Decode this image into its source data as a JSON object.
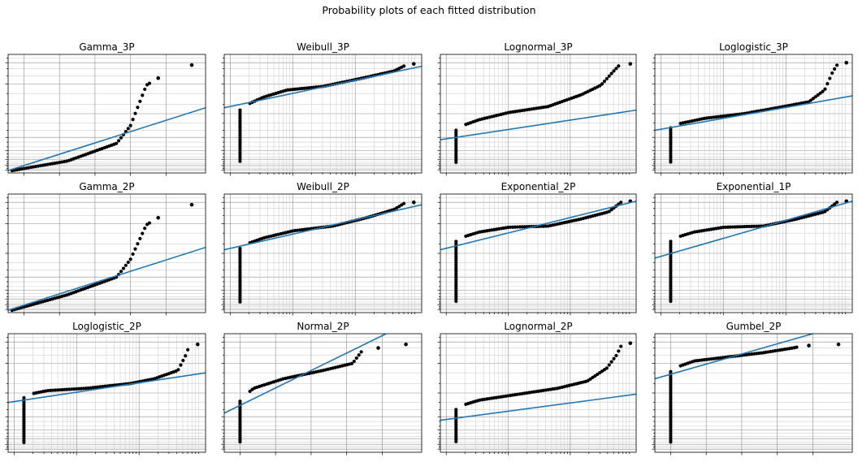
{
  "figure": {
    "title": "Probability plots of each fitted distribution"
  },
  "colors": {
    "fit_line": "#1f77b4",
    "points": "#000000",
    "grid_major": "#8c8c8c",
    "grid_minor": "#cfcfcf",
    "axes": "#000000"
  },
  "chart_data": [
    {
      "type": "scatter",
      "title": "Gamma_3P",
      "grid": "linear-x, probability-y",
      "x_tick_labels_shown": false,
      "y_tick_labels_shown": false,
      "series": [
        {
          "kind": "points",
          "color": "#000000"
        },
        {
          "kind": "fitted-line",
          "color": "#1f77b4"
        }
      ]
    },
    {
      "type": "scatter",
      "title": "Weibull_3P",
      "grid": "log-x, probability-y",
      "x_tick_labels_shown": false,
      "y_tick_labels_shown": false,
      "series": [
        {
          "kind": "points",
          "color": "#000000"
        },
        {
          "kind": "fitted-line",
          "color": "#1f77b4"
        }
      ]
    },
    {
      "type": "scatter",
      "title": "Lognormal_3P",
      "grid": "log-x, probability-y",
      "x_tick_labels_shown": false,
      "y_tick_labels_shown": false,
      "series": [
        {
          "kind": "points",
          "color": "#000000"
        },
        {
          "kind": "fitted-line",
          "color": "#1f77b4"
        }
      ]
    },
    {
      "type": "scatter",
      "title": "Loglogistic_3P",
      "grid": "log-x, probability-y",
      "x_tick_labels_shown": false,
      "y_tick_labels_shown": false,
      "series": [
        {
          "kind": "points",
          "color": "#000000"
        },
        {
          "kind": "fitted-line",
          "color": "#1f77b4"
        }
      ]
    },
    {
      "type": "scatter",
      "title": "Gamma_2P",
      "grid": "linear-x, probability-y",
      "x_tick_labels_shown": false,
      "y_tick_labels_shown": false,
      "series": [
        {
          "kind": "points",
          "color": "#000000"
        },
        {
          "kind": "fitted-line",
          "color": "#1f77b4"
        }
      ]
    },
    {
      "type": "scatter",
      "title": "Weibull_2P",
      "grid": "log-x, probability-y",
      "x_tick_labels_shown": false,
      "y_tick_labels_shown": false,
      "series": [
        {
          "kind": "points",
          "color": "#000000"
        },
        {
          "kind": "fitted-line",
          "color": "#1f77b4"
        }
      ]
    },
    {
      "type": "scatter",
      "title": "Exponential_2P",
      "grid": "log-x, probability-y",
      "x_tick_labels_shown": false,
      "y_tick_labels_shown": false,
      "series": [
        {
          "kind": "points",
          "color": "#000000"
        },
        {
          "kind": "fitted-line",
          "color": "#1f77b4"
        }
      ]
    },
    {
      "type": "scatter",
      "title": "Exponential_1P",
      "grid": "log-x, probability-y",
      "x_tick_labels_shown": false,
      "y_tick_labels_shown": false,
      "series": [
        {
          "kind": "points",
          "color": "#000000"
        },
        {
          "kind": "fitted-line",
          "color": "#1f77b4"
        }
      ]
    },
    {
      "type": "scatter",
      "title": "Loglogistic_2P",
      "grid": "log-x, probability-y",
      "x_tick_labels_shown": false,
      "y_tick_labels_shown": false,
      "series": [
        {
          "kind": "points",
          "color": "#000000"
        },
        {
          "kind": "fitted-line",
          "color": "#1f77b4"
        }
      ]
    },
    {
      "type": "scatter",
      "title": "Normal_2P",
      "grid": "linear-x, probability-y",
      "x_tick_labels_shown": false,
      "y_tick_labels_shown": false,
      "series": [
        {
          "kind": "points",
          "color": "#000000"
        },
        {
          "kind": "fitted-line",
          "color": "#1f77b4"
        }
      ]
    },
    {
      "type": "scatter",
      "title": "Lognormal_2P",
      "grid": "log-x, probability-y",
      "x_tick_labels_shown": false,
      "y_tick_labels_shown": false,
      "series": [
        {
          "kind": "points",
          "color": "#000000"
        },
        {
          "kind": "fitted-line",
          "color": "#1f77b4"
        }
      ]
    },
    {
      "type": "scatter",
      "title": "Gumbel_2P",
      "grid": "linear-x, probability-y",
      "x_tick_labels_shown": false,
      "y_tick_labels_shown": false,
      "series": [
        {
          "kind": "points",
          "color": "#000000"
        },
        {
          "kind": "fitted-line",
          "color": "#1f77b4"
        }
      ]
    }
  ]
}
